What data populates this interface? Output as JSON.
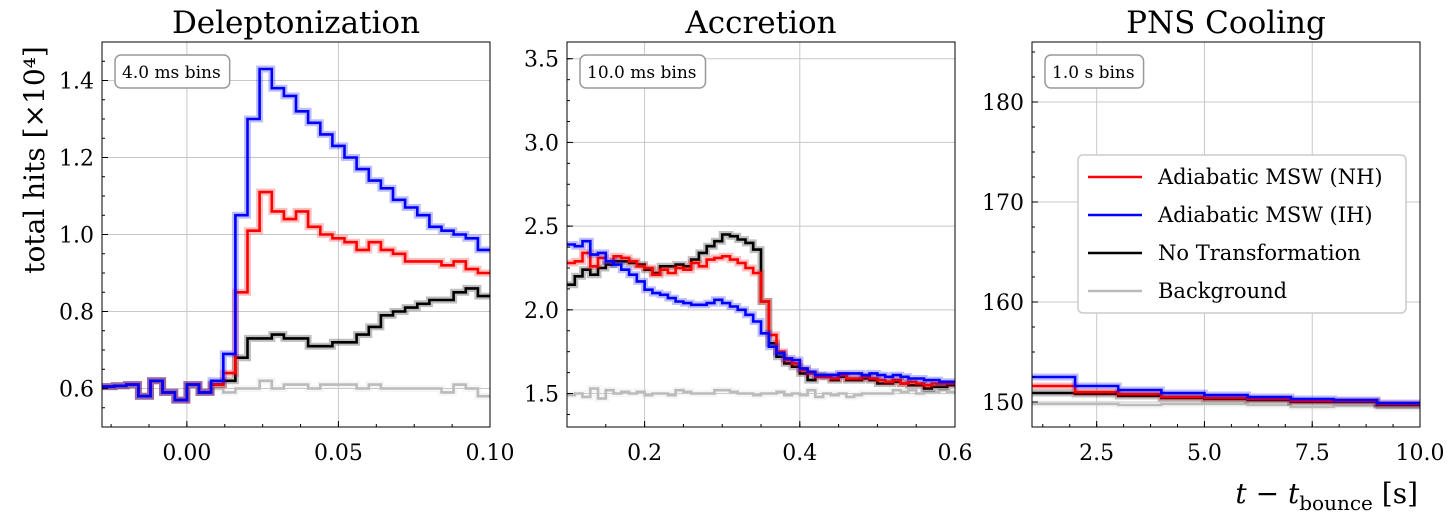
{
  "figure": {
    "ylabel": "total hits [×10⁴]",
    "xlabel": "t − t_bounce [s]",
    "legend": [
      {
        "label": "Adiabatic MSW (NH)",
        "color": "#ff0000"
      },
      {
        "label": "Adiabatic MSW (IH)",
        "color": "#0000ff"
      },
      {
        "label": "No Transformation",
        "color": "#000000"
      },
      {
        "label": "Background",
        "color": "#bbbbbb"
      }
    ]
  },
  "chart_data": [
    {
      "type": "line",
      "step": true,
      "title": "Deleptonization",
      "annotation": "4.0 ms bins",
      "xlim": [
        -0.028,
        0.1
      ],
      "ylim": [
        0.5,
        1.5
      ],
      "xticks": [
        0.0,
        0.05,
        0.1
      ],
      "xtick_labels": [
        "0.00",
        "0.05",
        "0.10"
      ],
      "yticks": [
        0.6,
        0.8,
        1.0,
        1.2,
        1.4
      ],
      "ytick_labels": [
        "0.6",
        "0.8",
        "1.0",
        "1.2",
        "1.4"
      ],
      "grid": true,
      "x_step": [
        -0.028,
        -0.024,
        -0.02,
        -0.016,
        -0.012,
        -0.008,
        -0.004,
        0.0,
        0.004,
        0.008,
        0.012,
        0.016,
        0.02,
        0.024,
        0.028,
        0.032,
        0.036,
        0.04,
        0.044,
        0.048,
        0.052,
        0.056,
        0.06,
        0.064,
        0.068,
        0.072,
        0.076,
        0.08,
        0.084,
        0.088,
        0.092,
        0.096
      ],
      "series": [
        {
          "name": "Adiabatic MSW (NH)",
          "color": "#ff0000",
          "values": [
            0.605,
            0.607,
            0.61,
            0.58,
            0.62,
            0.59,
            0.57,
            0.61,
            0.59,
            0.61,
            0.64,
            0.85,
            1.01,
            1.11,
            1.06,
            1.04,
            1.06,
            1.02,
            1.0,
            0.99,
            0.98,
            0.96,
            0.98,
            0.96,
            0.95,
            0.93,
            0.93,
            0.93,
            0.92,
            0.93,
            0.91,
            0.9
          ]
        },
        {
          "name": "Adiabatic MSW (IH)",
          "color": "#0000ff",
          "values": [
            0.605,
            0.607,
            0.61,
            0.58,
            0.62,
            0.59,
            0.57,
            0.61,
            0.59,
            0.62,
            0.69,
            1.05,
            1.3,
            1.43,
            1.38,
            1.36,
            1.32,
            1.29,
            1.26,
            1.23,
            1.2,
            1.17,
            1.14,
            1.12,
            1.09,
            1.07,
            1.05,
            1.02,
            1.01,
            1.0,
            0.99,
            0.96
          ]
        },
        {
          "name": "No Transformation",
          "color": "#000000",
          "values": [
            0.605,
            0.607,
            0.61,
            0.58,
            0.62,
            0.59,
            0.57,
            0.61,
            0.59,
            0.61,
            0.62,
            0.68,
            0.73,
            0.73,
            0.74,
            0.73,
            0.73,
            0.71,
            0.71,
            0.72,
            0.72,
            0.74,
            0.76,
            0.79,
            0.8,
            0.81,
            0.82,
            0.83,
            0.83,
            0.85,
            0.86,
            0.84
          ]
        },
        {
          "name": "Background",
          "color": "#bbbbbb",
          "values": [
            0.605,
            0.607,
            0.61,
            0.58,
            0.62,
            0.59,
            0.57,
            0.61,
            0.59,
            0.6,
            0.59,
            0.6,
            0.6,
            0.62,
            0.6,
            0.61,
            0.61,
            0.6,
            0.61,
            0.61,
            0.61,
            0.6,
            0.61,
            0.6,
            0.6,
            0.6,
            0.6,
            0.6,
            0.59,
            0.61,
            0.6,
            0.58
          ]
        }
      ]
    },
    {
      "type": "line",
      "step": true,
      "title": "Accretion",
      "annotation": "10.0 ms bins",
      "xlim": [
        0.1,
        0.6
      ],
      "ylim": [
        1.3,
        3.6
      ],
      "xticks": [
        0.2,
        0.4,
        0.6
      ],
      "xtick_labels": [
        "0.2",
        "0.4",
        "0.6"
      ],
      "yticks": [
        1.5,
        2.0,
        2.5,
        3.0,
        3.5
      ],
      "ytick_labels": [
        "1.5",
        "2.0",
        "2.5",
        "3.0",
        "3.5"
      ],
      "grid": true,
      "x_step": [
        0.1,
        0.11,
        0.12,
        0.13,
        0.14,
        0.15,
        0.16,
        0.17,
        0.18,
        0.19,
        0.2,
        0.21,
        0.22,
        0.23,
        0.24,
        0.25,
        0.26,
        0.27,
        0.28,
        0.29,
        0.3,
        0.31,
        0.32,
        0.33,
        0.34,
        0.35,
        0.36,
        0.37,
        0.38,
        0.39,
        0.4,
        0.41,
        0.42,
        0.43,
        0.44,
        0.45,
        0.46,
        0.47,
        0.48,
        0.49,
        0.5,
        0.51,
        0.52,
        0.53,
        0.54,
        0.55,
        0.56,
        0.57,
        0.58,
        0.59
      ],
      "series": [
        {
          "name": "Adiabatic MSW (NH)",
          "color": "#ff0000",
          "values": [
            2.28,
            2.29,
            2.34,
            2.26,
            2.31,
            2.29,
            2.32,
            2.31,
            2.29,
            2.26,
            2.25,
            2.21,
            2.24,
            2.22,
            2.25,
            2.24,
            2.28,
            2.26,
            2.3,
            2.31,
            2.32,
            2.3,
            2.28,
            2.25,
            2.22,
            2.05,
            1.85,
            1.75,
            1.7,
            1.68,
            1.64,
            1.62,
            1.6,
            1.6,
            1.59,
            1.61,
            1.59,
            1.59,
            1.6,
            1.59,
            1.58,
            1.57,
            1.58,
            1.56,
            1.57,
            1.56,
            1.55,
            1.56,
            1.56,
            1.56
          ]
        },
        {
          "name": "Adiabatic MSW (IH)",
          "color": "#0000ff",
          "values": [
            2.39,
            2.38,
            2.41,
            2.33,
            2.34,
            2.29,
            2.27,
            2.24,
            2.21,
            2.17,
            2.12,
            2.1,
            2.09,
            2.07,
            2.05,
            2.04,
            2.03,
            2.03,
            2.04,
            2.06,
            2.04,
            2.02,
            2.0,
            1.97,
            1.93,
            1.86,
            1.78,
            1.74,
            1.71,
            1.7,
            1.65,
            1.63,
            1.61,
            1.61,
            1.61,
            1.62,
            1.62,
            1.62,
            1.61,
            1.62,
            1.61,
            1.6,
            1.61,
            1.6,
            1.59,
            1.59,
            1.58,
            1.58,
            1.57,
            1.57
          ]
        },
        {
          "name": "No Transformation",
          "color": "#000000",
          "values": [
            2.15,
            2.2,
            2.24,
            2.21,
            2.25,
            2.27,
            2.29,
            2.29,
            2.28,
            2.27,
            2.24,
            2.22,
            2.26,
            2.26,
            2.27,
            2.26,
            2.3,
            2.34,
            2.38,
            2.41,
            2.45,
            2.44,
            2.42,
            2.4,
            2.36,
            2.05,
            1.8,
            1.72,
            1.68,
            1.66,
            1.62,
            1.58,
            1.61,
            1.6,
            1.58,
            1.6,
            1.58,
            1.58,
            1.59,
            1.58,
            1.56,
            1.56,
            1.57,
            1.56,
            1.55,
            1.55,
            1.53,
            1.54,
            1.54,
            1.55
          ]
        },
        {
          "name": "Background",
          "color": "#bbbbbb",
          "values": [
            1.49,
            1.5,
            1.48,
            1.53,
            1.47,
            1.52,
            1.5,
            1.51,
            1.5,
            1.51,
            1.49,
            1.5,
            1.5,
            1.49,
            1.52,
            1.51,
            1.5,
            1.5,
            1.5,
            1.52,
            1.52,
            1.51,
            1.5,
            1.5,
            1.49,
            1.5,
            1.5,
            1.51,
            1.49,
            1.5,
            1.49,
            1.52,
            1.48,
            1.5,
            1.49,
            1.5,
            1.48,
            1.49,
            1.5,
            1.5,
            1.5,
            1.5,
            1.52,
            1.51,
            1.52,
            1.5,
            1.51,
            1.51,
            1.52,
            1.51
          ]
        }
      ]
    },
    {
      "type": "line",
      "step": true,
      "title": "PNS Cooling",
      "annotation": "1.0 s bins",
      "xlim": [
        1.0,
        10.0
      ],
      "ylim": [
        147.5,
        186
      ],
      "xticks": [
        2.5,
        5.0,
        7.5,
        10.0
      ],
      "xtick_labels": [
        "2.5",
        "5.0",
        "7.5",
        "10.0"
      ],
      "yticks": [
        150,
        160,
        170,
        180
      ],
      "ytick_labels": [
        "150",
        "160",
        "170",
        "180"
      ],
      "grid": true,
      "x_step": [
        1,
        2,
        3,
        4,
        5,
        6,
        7,
        8,
        9
      ],
      "series": [
        {
          "name": "Adiabatic MSW (NH)",
          "color": "#ff0000",
          "values": [
            151.6,
            151.0,
            150.8,
            150.5,
            150.4,
            150.3,
            150.1,
            150.1,
            149.8
          ]
        },
        {
          "name": "Adiabatic MSW (IH)",
          "color": "#0000ff",
          "values": [
            152.5,
            151.6,
            151.2,
            150.9,
            150.7,
            150.5,
            150.3,
            150.2,
            149.9
          ]
        },
        {
          "name": "No Transformation",
          "color": "#000000",
          "values": [
            150.9,
            150.8,
            150.6,
            150.4,
            150.3,
            150.2,
            150.0,
            150.0,
            149.7
          ]
        },
        {
          "name": "Background",
          "color": "#bbbbbb",
          "values": [
            149.8,
            149.8,
            149.7,
            149.8,
            149.8,
            149.7,
            149.5,
            149.6,
            149.4
          ]
        }
      ]
    }
  ]
}
